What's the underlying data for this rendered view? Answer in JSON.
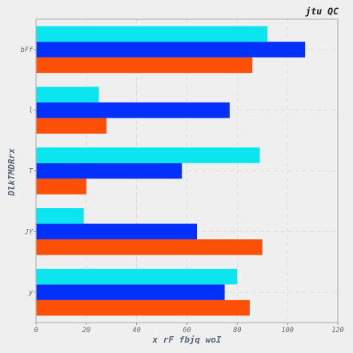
{
  "chart_data": {
    "type": "bar",
    "orientation": "horizontal",
    "title": "jtu QC",
    "xlabel": "x rF fbjq woI",
    "ylabel": "DlkTMDRrx",
    "categories": [
      "y",
      "JY",
      "T",
      "l",
      "bFf"
    ],
    "series": [
      {
        "color": "#fe4f07",
        "values": [
          85,
          90,
          20,
          28,
          86
        ]
      },
      {
        "color": "#0330fb",
        "values": [
          75,
          64,
          58,
          77,
          107
        ]
      },
      {
        "color": "#0be5ef",
        "values": [
          80,
          19,
          89,
          25,
          92
        ]
      }
    ],
    "xlim": [
      0,
      120
    ],
    "xticks": [
      0,
      20,
      40,
      60,
      80,
      100,
      120
    ],
    "grid": true,
    "background": "#efefef",
    "plot_background": "#efefef",
    "frame_color": "#b6b6b6"
  }
}
